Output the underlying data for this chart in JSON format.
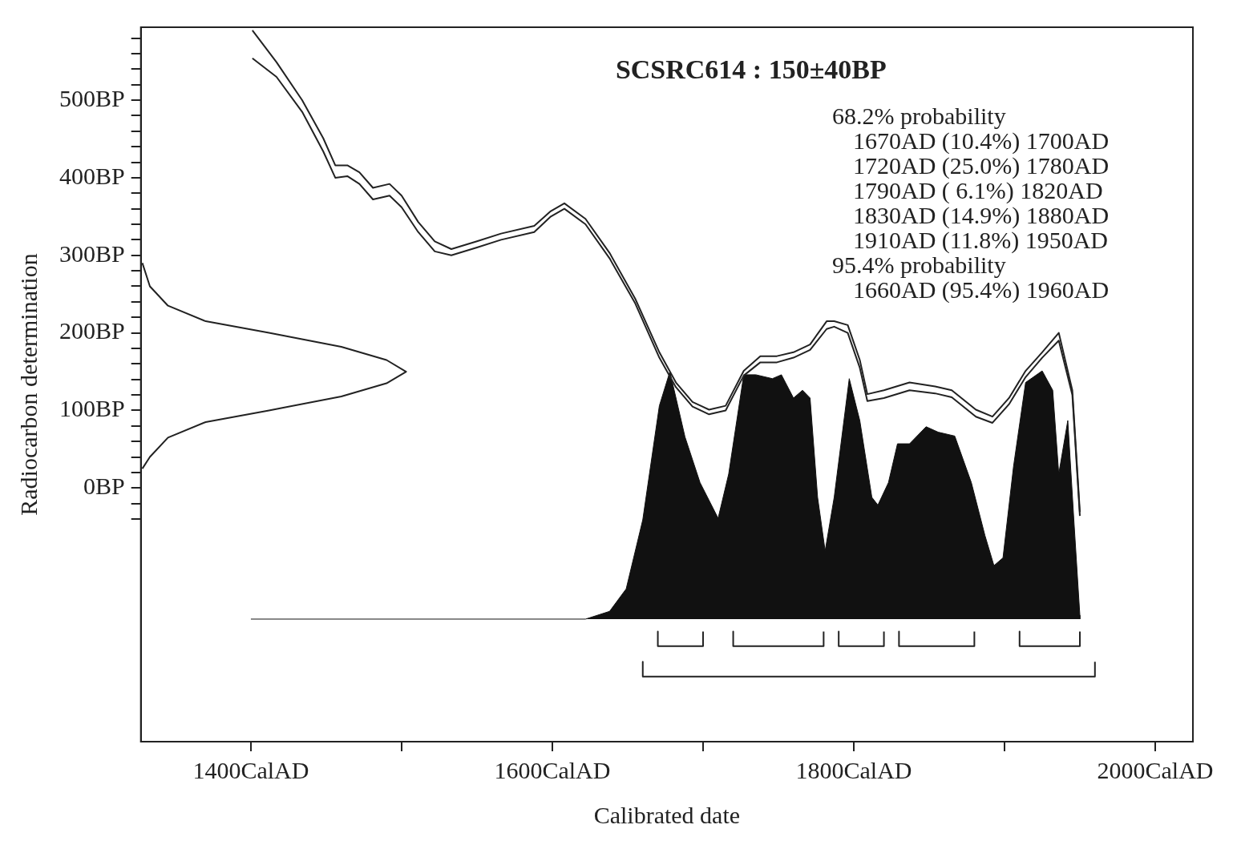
{
  "chart_data": {
    "type": "line",
    "title": "SCSRC614 : 150±40BP",
    "xlabel": "Calibrated date",
    "ylabel": "Radiocarbon determination",
    "annotations": [
      "68.2% probability",
      "1670AD (10.4%) 1700AD",
      "1720AD (25.0%) 1780AD",
      "1790AD ( 6.1%) 1820AD",
      "1830AD (14.9%) 1880AD",
      "1910AD (11.8%) 1950AD",
      "95.4% probability",
      "1660AD (95.4%) 1960AD"
    ],
    "xlim": [
      1327,
      2025
    ],
    "ylim": [
      -327,
      594
    ],
    "xticks": [
      {
        "value": 1400,
        "label": "1400CalAD"
      },
      {
        "value": 1500,
        "label": null
      },
      {
        "value": 1600,
        "label": "1600CalAD"
      },
      {
        "value": 1700,
        "label": null
      },
      {
        "value": 1800,
        "label": "1800CalAD"
      },
      {
        "value": 1900,
        "label": null
      },
      {
        "value": 2000,
        "label": "2000CalAD"
      }
    ],
    "yticks": [
      {
        "value": -40,
        "label": null
      },
      {
        "value": -20,
        "label": null
      },
      {
        "value": 0,
        "label": "0BP"
      },
      {
        "value": 20,
        "label": null
      },
      {
        "value": 40,
        "label": null
      },
      {
        "value": 60,
        "label": null
      },
      {
        "value": 80,
        "label": null
      },
      {
        "value": 100,
        "label": "100BP"
      },
      {
        "value": 120,
        "label": null
      },
      {
        "value": 140,
        "label": null
      },
      {
        "value": 160,
        "label": null
      },
      {
        "value": 180,
        "label": null
      },
      {
        "value": 200,
        "label": "200BP"
      },
      {
        "value": 220,
        "label": null
      },
      {
        "value": 240,
        "label": null
      },
      {
        "value": 260,
        "label": null
      },
      {
        "value": 280,
        "label": null
      },
      {
        "value": 300,
        "label": "300BP"
      },
      {
        "value": 320,
        "label": null
      },
      {
        "value": 340,
        "label": null
      },
      {
        "value": 360,
        "label": null
      },
      {
        "value": 380,
        "label": null
      },
      {
        "value": 400,
        "label": "400BP"
      },
      {
        "value": 420,
        "label": null
      },
      {
        "value": 440,
        "label": null
      },
      {
        "value": 460,
        "label": null
      },
      {
        "value": 480,
        "label": null
      },
      {
        "value": 500,
        "label": "500BP"
      },
      {
        "value": 520,
        "label": null
      },
      {
        "value": 540,
        "label": null
      },
      {
        "value": 560,
        "label": null
      },
      {
        "value": 580,
        "label": null
      }
    ],
    "grid": false,
    "legend": false,
    "marker": "none",
    "line_style": "solid",
    "series": [
      {
        "type": "line",
        "color": "#222222",
        "x": [
          1401,
          1417,
          1434,
          1448,
          1456,
          1464,
          1472,
          1481,
          1492,
          1500,
          1511,
          1522,
          1533,
          1550,
          1566,
          1588,
          1599,
          1608,
          1622,
          1638,
          1655,
          1671,
          1682,
          1693,
          1704,
          1715,
          1727,
          1738,
          1749,
          1760,
          1771,
          1782,
          1787,
          1796,
          1804,
          1809,
          1820,
          1837,
          1854,
          1865,
          1881,
          1892,
          1903,
          1914,
          1925,
          1936,
          1945,
          1950
        ],
        "values": [
          590,
          549,
          500,
          451,
          416,
          416,
          407,
          387,
          392,
          377,
          343,
          318,
          308,
          318,
          328,
          338,
          357,
          367,
          347,
          303,
          244,
          175,
          136,
          111,
          101,
          106,
          151,
          170,
          170,
          175,
          185,
          215,
          215,
          210,
          165,
          121,
          126,
          136,
          131,
          126,
          101,
          92,
          116,
          151,
          175,
          200,
          126,
          -31
        ]
      },
      {
        "type": "line",
        "color": "#222222",
        "x": [
          1401,
          1417,
          1434,
          1448,
          1456,
          1464,
          1472,
          1481,
          1492,
          1500,
          1511,
          1522,
          1533,
          1550,
          1566,
          1588,
          1599,
          1608,
          1622,
          1638,
          1655,
          1671,
          1682,
          1693,
          1704,
          1715,
          1727,
          1738,
          1749,
          1760,
          1771,
          1782,
          1787,
          1796,
          1804,
          1809,
          1820,
          1837,
          1854,
          1865,
          1881,
          1892,
          1903,
          1914,
          1925,
          1936,
          1945,
          1950
        ],
        "values": [
          554,
          530,
          485,
          434,
          400,
          402,
          392,
          372,
          377,
          362,
          330,
          305,
          300,
          310,
          320,
          330,
          350,
          360,
          340,
          296,
          238,
          168,
          130,
          105,
          95,
          100,
          145,
          162,
          162,
          168,
          178,
          205,
          208,
          200,
          155,
          112,
          116,
          126,
          122,
          117,
          92,
          84,
          108,
          143,
          168,
          190,
          120,
          -36
        ]
      },
      {
        "type": "line",
        "color": "#222222",
        "x": [
          1328,
          1333,
          1345,
          1370,
          1412,
          1460,
          1490,
          1503,
          1490,
          1460,
          1412,
          1370,
          1345,
          1333,
          1328
        ],
        "values": [
          290,
          260,
          235,
          215,
          200,
          182,
          165,
          150,
          135,
          118,
          100,
          85,
          65,
          40,
          25
        ]
      },
      {
        "type": "area",
        "color": "#111111",
        "x": [
          1400,
          1622,
          1638,
          1649,
          1660,
          1671,
          1678,
          1688,
          1698,
          1710,
          1717,
          1727,
          1735,
          1746,
          1752,
          1760,
          1766,
          1771,
          1776,
          1781,
          1787,
          1797,
          1804,
          1812,
          1816,
          1823,
          1829,
          1837,
          1848,
          1856,
          1867,
          1878,
          1887,
          1893,
          1899,
          1906,
          1914,
          1925,
          1932,
          1936,
          1942,
          1946,
          1950,
          1950
        ],
        "values": [
          -169,
          -169,
          -159,
          -130,
          -41,
          106,
          150,
          66,
          7,
          -39,
          18,
          146,
          146,
          141,
          146,
          116,
          126,
          116,
          -12,
          -81,
          -12,
          141,
          87,
          -12,
          -22,
          7,
          57,
          57,
          79,
          72,
          67,
          7,
          -61,
          -100,
          -90,
          28,
          136,
          151,
          126,
          18,
          87,
          -41,
          -164,
          -169
        ]
      },
      {
        "type": "line",
        "color": "#222222",
        "x": [
          1670,
          1670,
          1700,
          1700
        ],
        "values": [
          -185,
          -204,
          -204,
          -185
        ]
      },
      {
        "type": "line",
        "color": "#222222",
        "x": [
          1720,
          1720,
          1780,
          1780
        ],
        "values": [
          -185,
          -204,
          -204,
          -185
        ]
      },
      {
        "type": "line",
        "color": "#222222",
        "x": [
          1790,
          1790,
          1820,
          1820
        ],
        "values": [
          -185,
          -204,
          -204,
          -185
        ]
      },
      {
        "type": "line",
        "color": "#222222",
        "x": [
          1830,
          1830,
          1880,
          1880
        ],
        "values": [
          -185,
          -204,
          -204,
          -185
        ]
      },
      {
        "type": "line",
        "color": "#222222",
        "x": [
          1910,
          1910,
          1950,
          1950
        ],
        "values": [
          -185,
          -204,
          -204,
          -185
        ]
      },
      {
        "type": "line",
        "color": "#222222",
        "x": [
          1660,
          1660,
          1960,
          1960
        ],
        "values": [
          -224,
          -243,
          -243,
          -224
        ]
      }
    ]
  }
}
